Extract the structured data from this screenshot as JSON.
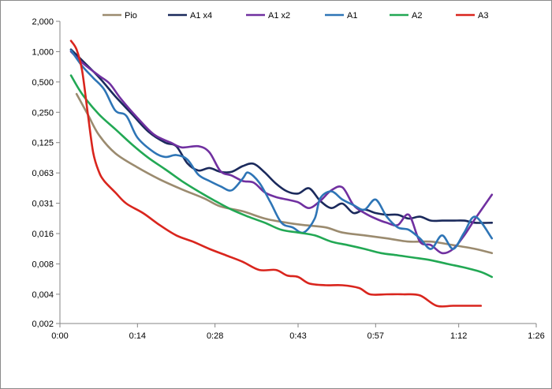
{
  "chart_data": {
    "type": "line",
    "title": "",
    "xlabel": "",
    "ylabel": "",
    "y_scale": "log2",
    "ylim": [
      0.002,
      2.0
    ],
    "xlim": [
      "0:00",
      "1:26"
    ],
    "x_tick_labels": [
      "0:00",
      "0:14",
      "0:28",
      "0:43",
      "0:57",
      "1:12",
      "1:26"
    ],
    "y_tick_labels": [
      "2,000",
      "1,000",
      "0,500",
      "0,250",
      "0,125",
      "0,063",
      "0,031",
      "0,016",
      "0,008",
      "0,004",
      "0,002"
    ],
    "y_tick_values": [
      2.0,
      1.0,
      0.5,
      0.25,
      0.125,
      0.0625,
      0.03125,
      0.015625,
      0.0078125,
      0.00390625,
      0.002
    ],
    "grid": false,
    "legend_position": "top",
    "series": [
      {
        "name": "Pio",
        "color": "#9b8b6f",
        "points": [
          [
            "0:03",
            0.38
          ],
          [
            "0:05",
            0.24
          ],
          [
            "0:07",
            0.15
          ],
          [
            "0:10",
            0.098
          ],
          [
            "0:14",
            0.071
          ],
          [
            "0:18",
            0.054
          ],
          [
            "0:22",
            0.043
          ],
          [
            "0:26",
            0.035
          ],
          [
            "0:29",
            0.029
          ],
          [
            "0:33",
            0.026
          ],
          [
            "0:37",
            0.022
          ],
          [
            "0:41",
            0.02
          ],
          [
            "0:44",
            0.019
          ],
          [
            "0:48",
            0.018
          ],
          [
            "0:51",
            0.016
          ],
          [
            "0:55",
            0.015
          ],
          [
            "0:59",
            0.014
          ],
          [
            "1:03",
            0.013
          ],
          [
            "1:07",
            0.013
          ],
          [
            "1:11",
            0.012
          ],
          [
            "1:15",
            0.011
          ],
          [
            "1:18",
            0.01
          ]
        ]
      },
      {
        "name": "A1 x4",
        "color": "#1b2a5c",
        "points": [
          [
            "0:02",
            1.05
          ],
          [
            "0:04",
            0.82
          ],
          [
            "0:07",
            0.56
          ],
          [
            "0:10",
            0.36
          ],
          [
            "0:13",
            0.24
          ],
          [
            "0:16",
            0.16
          ],
          [
            "0:19",
            0.125
          ],
          [
            "0:21",
            0.115
          ],
          [
            "0:23",
            0.078
          ],
          [
            "0:25",
            0.066
          ],
          [
            "0:27",
            0.07
          ],
          [
            "0:29",
            0.064
          ],
          [
            "0:31",
            0.064
          ],
          [
            "0:33",
            0.073
          ],
          [
            "0:35",
            0.077
          ],
          [
            "0:37",
            0.063
          ],
          [
            "0:39",
            0.049
          ],
          [
            "0:41",
            0.041
          ],
          [
            "0:43",
            0.039
          ],
          [
            "0:45",
            0.044
          ],
          [
            "0:47",
            0.033
          ],
          [
            "0:49",
            0.028
          ],
          [
            "0:51",
            0.031
          ],
          [
            "0:53",
            0.025
          ],
          [
            "0:55",
            0.027
          ],
          [
            "0:57",
            0.025
          ],
          [
            "0:59",
            0.024
          ],
          [
            "1:01",
            0.024
          ],
          [
            "1:03",
            0.022
          ],
          [
            "1:05",
            0.023
          ],
          [
            "1:07",
            0.021
          ],
          [
            "1:09",
            0.021
          ],
          [
            "1:11",
            0.021
          ],
          [
            "1:13",
            0.021
          ],
          [
            "1:15",
            0.02
          ],
          [
            "1:18",
            0.02
          ]
        ]
      },
      {
        "name": "A1 x2",
        "color": "#7030a0",
        "points": [
          [
            "0:02",
            1.0
          ],
          [
            "0:04",
            0.78
          ],
          [
            "0:07",
            0.58
          ],
          [
            "0:09",
            0.48
          ],
          [
            "0:11",
            0.34
          ],
          [
            "0:14",
            0.22
          ],
          [
            "0:17",
            0.15
          ],
          [
            "0:20",
            0.125
          ],
          [
            "0:22",
            0.112
          ],
          [
            "0:25",
            0.115
          ],
          [
            "0:27",
            0.1
          ],
          [
            "0:29",
            0.065
          ],
          [
            "0:31",
            0.059
          ],
          [
            "0:33",
            0.052
          ],
          [
            "0:35",
            0.05
          ],
          [
            "0:37",
            0.04
          ],
          [
            "0:39",
            0.036
          ],
          [
            "0:41",
            0.034
          ],
          [
            "0:43",
            0.032
          ],
          [
            "0:45",
            0.028
          ],
          [
            "0:47",
            0.033
          ],
          [
            "0:49",
            0.042
          ],
          [
            "0:51",
            0.045
          ],
          [
            "0:53",
            0.03
          ],
          [
            "0:55",
            0.025
          ],
          [
            "0:57",
            0.022
          ],
          [
            "0:59",
            0.02
          ],
          [
            "1:01",
            0.019
          ],
          [
            "1:03",
            0.024
          ],
          [
            "1:05",
            0.013
          ],
          [
            "1:07",
            0.012
          ],
          [
            "1:09",
            0.01
          ],
          [
            "1:11",
            0.011
          ],
          [
            "1:13",
            0.015
          ],
          [
            "1:15",
            0.022
          ],
          [
            "1:18",
            0.038
          ]
        ]
      },
      {
        "name": "A1",
        "color": "#2e75b6",
        "points": [
          [
            "0:02",
            1.03
          ],
          [
            "0:04",
            0.72
          ],
          [
            "0:06",
            0.55
          ],
          [
            "0:08",
            0.42
          ],
          [
            "0:10",
            0.26
          ],
          [
            "0:12",
            0.23
          ],
          [
            "0:14",
            0.14
          ],
          [
            "0:17",
            0.1
          ],
          [
            "0:19",
            0.09
          ],
          [
            "0:21",
            0.094
          ],
          [
            "0:23",
            0.085
          ],
          [
            "0:25",
            0.06
          ],
          [
            "0:27",
            0.052
          ],
          [
            "0:29",
            0.046
          ],
          [
            "0:31",
            0.042
          ],
          [
            "0:33",
            0.055
          ],
          [
            "0:34",
            0.063
          ],
          [
            "0:36",
            0.05
          ],
          [
            "0:38",
            0.032
          ],
          [
            "0:40",
            0.02
          ],
          [
            "0:42",
            0.018
          ],
          [
            "0:44",
            0.016
          ],
          [
            "0:46",
            0.022
          ],
          [
            "0:47",
            0.035
          ],
          [
            "0:49",
            0.041
          ],
          [
            "0:51",
            0.034
          ],
          [
            "0:53",
            0.03
          ],
          [
            "0:55",
            0.027
          ],
          [
            "0:57",
            0.034
          ],
          [
            "0:59",
            0.023
          ],
          [
            "1:01",
            0.018
          ],
          [
            "1:03",
            0.017
          ],
          [
            "1:05",
            0.014
          ],
          [
            "1:07",
            0.011
          ],
          [
            "1:09",
            0.015
          ],
          [
            "1:11",
            0.011
          ],
          [
            "1:13",
            0.016
          ],
          [
            "1:15",
            0.023
          ],
          [
            "1:18",
            0.014
          ]
        ]
      },
      {
        "name": "A2",
        "color": "#22a854",
        "points": [
          [
            "0:02",
            0.58
          ],
          [
            "0:04",
            0.38
          ],
          [
            "0:07",
            0.24
          ],
          [
            "0:10",
            0.17
          ],
          [
            "0:13",
            0.12
          ],
          [
            "0:16",
            0.088
          ],
          [
            "0:19",
            0.068
          ],
          [
            "0:22",
            0.052
          ],
          [
            "0:25",
            0.041
          ],
          [
            "0:28",
            0.033
          ],
          [
            "0:31",
            0.027
          ],
          [
            "0:34",
            0.023
          ],
          [
            "0:37",
            0.02
          ],
          [
            "0:40",
            0.017
          ],
          [
            "0:43",
            0.016
          ],
          [
            "0:46",
            0.015
          ],
          [
            "0:49",
            0.013
          ],
          [
            "0:52",
            0.012
          ],
          [
            "0:55",
            0.011
          ],
          [
            "0:58",
            0.01
          ],
          [
            "1:01",
            0.0095
          ],
          [
            "1:04",
            0.009
          ],
          [
            "1:07",
            0.0085
          ],
          [
            "1:10",
            0.0078
          ],
          [
            "1:13",
            0.0072
          ],
          [
            "1:16",
            0.0065
          ],
          [
            "1:18",
            0.0058
          ]
        ]
      },
      {
        "name": "A3",
        "color": "#d9251d",
        "points": [
          [
            "0:02",
            1.28
          ],
          [
            "0:03",
            1.05
          ],
          [
            "0:04",
            0.65
          ],
          [
            "0:05",
            0.25
          ],
          [
            "0:06",
            0.1
          ],
          [
            "0:07",
            0.065
          ],
          [
            "0:08",
            0.052
          ],
          [
            "0:10",
            0.04
          ],
          [
            "0:12",
            0.031
          ],
          [
            "0:15",
            0.025
          ],
          [
            "0:18",
            0.019
          ],
          [
            "0:21",
            0.015
          ],
          [
            "0:24",
            0.013
          ],
          [
            "0:27",
            0.011
          ],
          [
            "0:30",
            0.0095
          ],
          [
            "0:33",
            0.0082
          ],
          [
            "0:36",
            0.0068
          ],
          [
            "0:39",
            0.0068
          ],
          [
            "0:41",
            0.006
          ],
          [
            "0:43",
            0.0058
          ],
          [
            "0:45",
            0.005
          ],
          [
            "0:48",
            0.0048
          ],
          [
            "0:51",
            0.0048
          ],
          [
            "0:54",
            0.0045
          ],
          [
            "0:56",
            0.0039
          ],
          [
            "0:59",
            0.0039
          ],
          [
            "1:02",
            0.0039
          ],
          [
            "1:05",
            0.0038
          ],
          [
            "1:08",
            0.003
          ],
          [
            "1:11",
            0.003
          ],
          [
            "1:14",
            0.003
          ],
          [
            "1:16",
            0.003
          ]
        ]
      }
    ]
  }
}
